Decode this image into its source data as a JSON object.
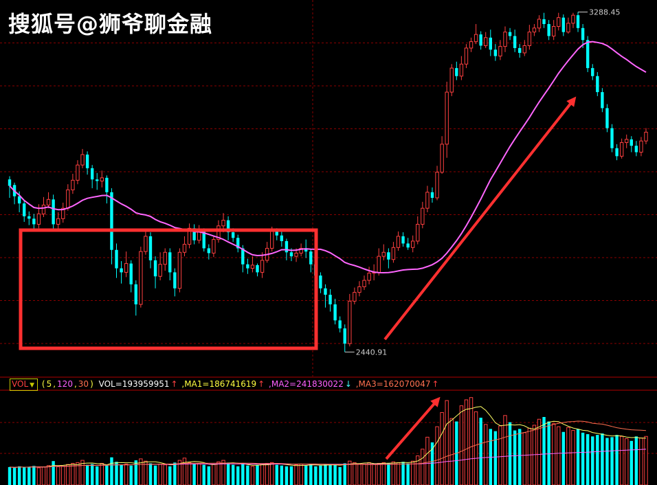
{
  "watermark": "搜狐号@狮爷聊金融",
  "volume_panel": {
    "selector": "VOL",
    "params_open": "(",
    "param_5": "5",
    "param_120": "120",
    "param_30": "30",
    "params_close": ")",
    "vol_text": "VOL=193959951",
    "vol_arrow": "↑",
    "ma1_text": ",MA1=186741619",
    "ma1_arrow": "↑",
    "ma2_text": ",MA2=241830022",
    "ma2_arrow": "↓",
    "ma3_text": ",MA3=162070047",
    "ma3_arrow": "↑"
  },
  "colors": {
    "up": "#ff4040",
    "down": "#00ffff",
    "ma_line": "#ff66ff",
    "box": "#ff3030",
    "arrow": "#ff3030",
    "grid": "#8b0000"
  },
  "chart_data": {
    "type": "candlestick",
    "price_ylim": [
      2380,
      3320
    ],
    "high_label": "3288.45",
    "low_label": "2440.91",
    "ma_window": 30,
    "candles": [
      [
        2872,
        2856,
        2880,
        2826
      ],
      [
        2858,
        2830,
        2864,
        2810
      ],
      [
        2830,
        2812,
        2842,
        2790
      ],
      [
        2812,
        2780,
        2820,
        2766
      ],
      [
        2780,
        2774,
        2792,
        2758
      ],
      [
        2774,
        2760,
        2786,
        2748
      ],
      [
        2760,
        2786,
        2810,
        2750
      ],
      [
        2786,
        2808,
        2828,
        2778
      ],
      [
        2808,
        2822,
        2840,
        2800
      ],
      [
        2822,
        2760,
        2834,
        2742
      ],
      [
        2760,
        2774,
        2790,
        2746
      ],
      [
        2774,
        2800,
        2814,
        2764
      ],
      [
        2800,
        2846,
        2860,
        2794
      ],
      [
        2846,
        2870,
        2886,
        2836
      ],
      [
        2870,
        2908,
        2920,
        2860
      ],
      [
        2908,
        2934,
        2948,
        2900
      ],
      [
        2934,
        2900,
        2942,
        2884
      ],
      [
        2900,
        2872,
        2908,
        2850
      ],
      [
        2872,
        2868,
        2888,
        2846
      ],
      [
        2868,
        2876,
        2894,
        2852
      ],
      [
        2876,
        2840,
        2882,
        2812
      ],
      [
        2840,
        2696,
        2850,
        2660
      ],
      [
        2696,
        2650,
        2712,
        2626
      ],
      [
        2650,
        2640,
        2668,
        2612
      ],
      [
        2640,
        2662,
        2692,
        2628
      ],
      [
        2662,
        2610,
        2670,
        2590
      ],
      [
        2610,
        2560,
        2620,
        2532
      ],
      [
        2560,
        2692,
        2704,
        2552
      ],
      [
        2692,
        2730,
        2746,
        2684
      ],
      [
        2730,
        2670,
        2740,
        2650
      ],
      [
        2670,
        2630,
        2680,
        2600
      ],
      [
        2630,
        2660,
        2690,
        2620
      ],
      [
        2660,
        2690,
        2700,
        2644
      ],
      [
        2690,
        2640,
        2700,
        2620
      ],
      [
        2640,
        2600,
        2650,
        2580
      ],
      [
        2600,
        2690,
        2700,
        2590
      ],
      [
        2690,
        2710,
        2730,
        2680
      ],
      [
        2710,
        2750,
        2762,
        2700
      ],
      [
        2750,
        2720,
        2760,
        2710
      ],
      [
        2720,
        2742,
        2758,
        2712
      ],
      [
        2742,
        2700,
        2750,
        2692
      ],
      [
        2700,
        2688,
        2710,
        2672
      ],
      [
        2688,
        2722,
        2732,
        2678
      ],
      [
        2722,
        2756,
        2770,
        2714
      ],
      [
        2756,
        2770,
        2788,
        2740
      ],
      [
        2770,
        2740,
        2780,
        2720
      ],
      [
        2740,
        2726,
        2750,
        2716
      ],
      [
        2726,
        2700,
        2734,
        2690
      ],
      [
        2700,
        2660,
        2708,
        2640
      ],
      [
        2660,
        2650,
        2674,
        2636
      ],
      [
        2650,
        2658,
        2680,
        2640
      ],
      [
        2658,
        2640,
        2662,
        2630
      ],
      [
        2640,
        2670,
        2690,
        2626
      ],
      [
        2670,
        2700,
        2716,
        2664
      ],
      [
        2700,
        2742,
        2754,
        2692
      ],
      [
        2742,
        2732,
        2750,
        2720
      ],
      [
        2732,
        2718,
        2742,
        2704
      ],
      [
        2718,
        2690,
        2724,
        2670
      ],
      [
        2690,
        2680,
        2700,
        2668
      ],
      [
        2680,
        2688,
        2700,
        2666
      ],
      [
        2688,
        2700,
        2712,
        2680
      ],
      [
        2700,
        2692,
        2722,
        2676
      ],
      [
        2692,
        2660,
        2698,
        2640
      ],
      [
        2660,
        2632,
        2670,
        2612
      ],
      [
        2632,
        2600,
        2640,
        2588
      ],
      [
        2600,
        2584,
        2610,
        2552
      ],
      [
        2584,
        2560,
        2598,
        2542
      ],
      [
        2560,
        2520,
        2574,
        2510
      ],
      [
        2520,
        2500,
        2530,
        2490
      ],
      [
        2500,
        2462,
        2510,
        2441
      ],
      [
        2462,
        2568,
        2586,
        2455
      ],
      [
        2568,
        2590,
        2602,
        2560
      ],
      [
        2590,
        2604,
        2618,
        2580
      ],
      [
        2604,
        2620,
        2632,
        2596
      ],
      [
        2620,
        2638,
        2654,
        2610
      ],
      [
        2638,
        2640,
        2660,
        2620
      ],
      [
        2640,
        2680,
        2700,
        2632
      ],
      [
        2680,
        2690,
        2710,
        2670
      ],
      [
        2690,
        2672,
        2700,
        2650
      ],
      [
        2672,
        2702,
        2716,
        2664
      ],
      [
        2702,
        2730,
        2742,
        2694
      ],
      [
        2730,
        2712,
        2740,
        2704
      ],
      [
        2712,
        2702,
        2726,
        2696
      ],
      [
        2702,
        2718,
        2732,
        2690
      ],
      [
        2718,
        2760,
        2780,
        2710
      ],
      [
        2760,
        2800,
        2816,
        2750
      ],
      [
        2800,
        2840,
        2856,
        2790
      ],
      [
        2840,
        2826,
        2852,
        2814
      ],
      [
        2826,
        2890,
        2906,
        2820
      ],
      [
        2890,
        2960,
        2980,
        2886
      ],
      [
        2960,
        3090,
        3116,
        2926
      ],
      [
        3090,
        3150,
        3160,
        3080
      ],
      [
        3150,
        3130,
        3166,
        3120
      ],
      [
        3130,
        3160,
        3180,
        3120
      ],
      [
        3160,
        3200,
        3210,
        3150
      ],
      [
        3200,
        3216,
        3226,
        3190
      ],
      [
        3216,
        3234,
        3260,
        3210
      ],
      [
        3234,
        3206,
        3242,
        3196
      ],
      [
        3206,
        3226,
        3240,
        3200
      ],
      [
        3226,
        3196,
        3246,
        3180
      ],
      [
        3196,
        3180,
        3210,
        3168
      ],
      [
        3180,
        3204,
        3220,
        3170
      ],
      [
        3204,
        3240,
        3254,
        3190
      ],
      [
        3240,
        3230,
        3250,
        3220
      ],
      [
        3230,
        3200,
        3246,
        3190
      ],
      [
        3200,
        3188,
        3210,
        3176
      ],
      [
        3188,
        3206,
        3220,
        3180
      ],
      [
        3206,
        3240,
        3258,
        3196
      ],
      [
        3240,
        3250,
        3260,
        3230
      ],
      [
        3250,
        3272,
        3282,
        3240
      ],
      [
        3272,
        3260,
        3288,
        3250
      ],
      [
        3260,
        3230,
        3270,
        3220
      ],
      [
        3230,
        3254,
        3270,
        3220
      ],
      [
        3254,
        3276,
        3288,
        3244
      ],
      [
        3276,
        3240,
        3284,
        3230
      ],
      [
        3240,
        3262,
        3276,
        3236
      ],
      [
        3262,
        3282,
        3288,
        3250
      ],
      [
        3282,
        3250,
        3290,
        3240
      ],
      [
        3250,
        3220,
        3260,
        3200
      ],
      [
        3220,
        3150,
        3230,
        3140
      ],
      [
        3150,
        3130,
        3160,
        3120
      ],
      [
        3130,
        3090,
        3140,
        3080
      ],
      [
        3090,
        3050,
        3100,
        3040
      ],
      [
        3050,
        3000,
        3060,
        2990
      ],
      [
        3000,
        2950,
        3010,
        2940
      ],
      [
        2950,
        2930,
        2960,
        2920
      ],
      [
        2930,
        2964,
        2974,
        2924
      ],
      [
        2964,
        2972,
        2984,
        2950
      ],
      [
        2972,
        2956,
        2980,
        2940
      ],
      [
        2956,
        2940,
        2968,
        2930
      ],
      [
        2940,
        2968,
        2978,
        2930
      ],
      [
        2968,
        2990,
        3000,
        2960
      ]
    ],
    "volume_ylim": [
      0,
      25
    ],
    "volumes": [
      4.8,
      4.6,
      5.0,
      4.7,
      4.9,
      5.1,
      4.6,
      4.8,
      5.2,
      6.4,
      4.9,
      5.0,
      5.5,
      5.8,
      6.0,
      6.6,
      5.4,
      5.6,
      5.0,
      5.8,
      5.2,
      7.4,
      6.2,
      5.4,
      5.6,
      5.2,
      6.6,
      7.0,
      6.4,
      5.8,
      5.2,
      5.6,
      5.4,
      5.0,
      6.0,
      6.6,
      7.2,
      6.0,
      5.6,
      5.8,
      5.4,
      5.0,
      5.6,
      6.2,
      6.6,
      6.0,
      5.4,
      5.0,
      5.8,
      5.2,
      5.0,
      5.4,
      5.6,
      5.8,
      6.0,
      5.4,
      5.2,
      5.0,
      5.0,
      5.4,
      5.6,
      5.2,
      5.6,
      5.0,
      5.2,
      5.6,
      5.4,
      5.6,
      4.8,
      5.8,
      6.4,
      6.0,
      5.6,
      5.6,
      6.0,
      5.6,
      5.8,
      6.0,
      5.8,
      6.2,
      6.0,
      6.2,
      5.8,
      6.4,
      7.8,
      9.6,
      12.8,
      11.4,
      15.6,
      19.4,
      22.6,
      17.8,
      17.0,
      21.2,
      22.8,
      23.4,
      19.6,
      18.0,
      16.2,
      15.0,
      14.4,
      15.8,
      18.6,
      16.8,
      14.6,
      15.0,
      14.0,
      15.2,
      16.0,
      17.6,
      18.2,
      17.0,
      16.4,
      15.6,
      14.2,
      15.4,
      14.6,
      15.0,
      14.0,
      13.6,
      13.0,
      13.4,
      13.8,
      12.6,
      12.8,
      13.4,
      13.0,
      12.4,
      11.8,
      13.0,
      12.6,
      13.0
    ]
  }
}
